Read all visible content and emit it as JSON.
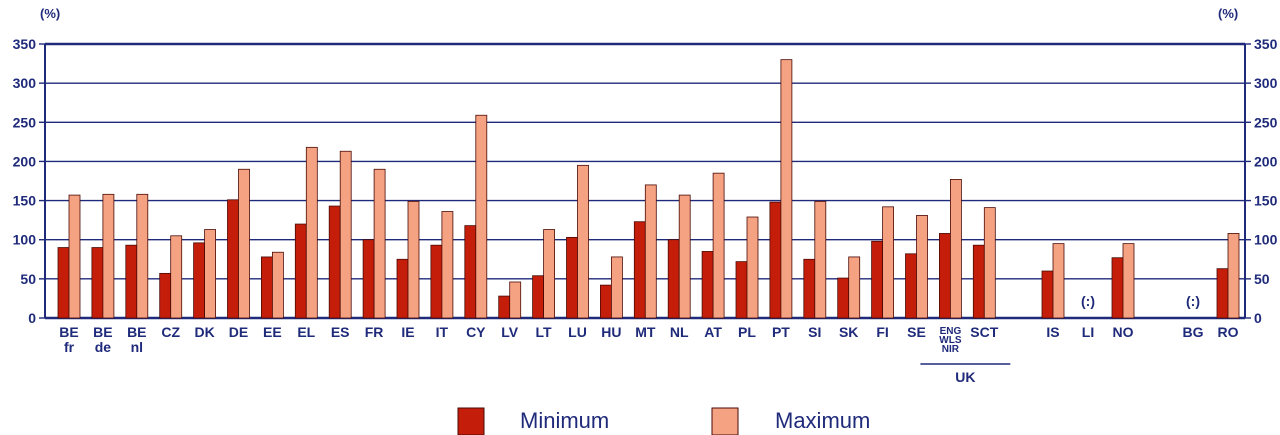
{
  "chart_data": {
    "type": "bar",
    "y_unit": "(%)",
    "ylim": [
      0,
      350
    ],
    "yticks": [
      0,
      50,
      100,
      150,
      200,
      250,
      300,
      350
    ],
    "grid": true,
    "legend_position": "bottom",
    "categories": [
      {
        "label": [
          "BE",
          "fr"
        ],
        "min": 90,
        "max": 157
      },
      {
        "label": [
          "BE",
          "de"
        ],
        "min": 90,
        "max": 158
      },
      {
        "label": [
          "BE",
          "nl"
        ],
        "min": 93,
        "max": 158
      },
      {
        "label": [
          "CZ"
        ],
        "min": 57,
        "max": 105
      },
      {
        "label": [
          "DK"
        ],
        "min": 96,
        "max": 113
      },
      {
        "label": [
          "DE"
        ],
        "min": 151,
        "max": 190
      },
      {
        "label": [
          "EE"
        ],
        "min": 78,
        "max": 84
      },
      {
        "label": [
          "EL"
        ],
        "min": 120,
        "max": 218
      },
      {
        "label": [
          "ES"
        ],
        "min": 143,
        "max": 213
      },
      {
        "label": [
          "FR"
        ],
        "min": 100,
        "max": 190
      },
      {
        "label": [
          "IE"
        ],
        "min": 75,
        "max": 149
      },
      {
        "label": [
          "IT"
        ],
        "min": 93,
        "max": 136
      },
      {
        "label": [
          "CY"
        ],
        "min": 118,
        "max": 259
      },
      {
        "label": [
          "LV"
        ],
        "min": 28,
        "max": 46
      },
      {
        "label": [
          "LT"
        ],
        "min": 54,
        "max": 113
      },
      {
        "label": [
          "LU"
        ],
        "min": 103,
        "max": 195
      },
      {
        "label": [
          "HU"
        ],
        "min": 42,
        "max": 78
      },
      {
        "label": [
          "MT"
        ],
        "min": 123,
        "max": 170
      },
      {
        "label": [
          "NL"
        ],
        "min": 100,
        "max": 157
      },
      {
        "label": [
          "AT"
        ],
        "min": 85,
        "max": 185
      },
      {
        "label": [
          "PL"
        ],
        "min": 72,
        "max": 129
      },
      {
        "label": [
          "PT"
        ],
        "min": 148,
        "max": 330
      },
      {
        "label": [
          "SI"
        ],
        "min": 75,
        "max": 149
      },
      {
        "label": [
          "SK"
        ],
        "min": 51,
        "max": 78
      },
      {
        "label": [
          "FI"
        ],
        "min": 98,
        "max": 142
      },
      {
        "label": [
          "SE"
        ],
        "min": 82,
        "max": 131
      },
      {
        "label": [
          "ENG",
          "WLS",
          "NIR"
        ],
        "min": 108,
        "max": 177
      },
      {
        "label": [
          "SCT"
        ],
        "min": 93,
        "max": 141
      },
      {
        "label": [
          "IS"
        ],
        "min": 60,
        "max": 95
      },
      {
        "label": [
          "LI"
        ],
        "min": null,
        "max": null,
        "note": "(:)"
      },
      {
        "label": [
          "NO"
        ],
        "min": 77,
        "max": 95
      },
      {
        "label": [
          "BG"
        ],
        "min": null,
        "max": null,
        "note": "(:)"
      },
      {
        "label": [
          "RO"
        ],
        "min": 63,
        "max": 108
      }
    ],
    "group_label": "UK",
    "series": [
      {
        "name": "Minimum",
        "color": "#c41e0a"
      },
      {
        "name": "Maximum",
        "color": "#f5a283"
      }
    ]
  }
}
